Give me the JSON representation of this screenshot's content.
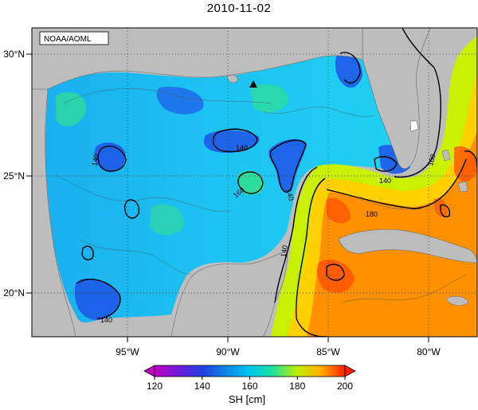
{
  "title": "2010-11-02",
  "credit": "NOAA/AOML",
  "colorbar_label": "SH [cm]",
  "map": {
    "lon_ticks": [
      "95°W",
      "90°W",
      "85°W",
      "80°W"
    ],
    "lat_ticks": [
      "30°N",
      "25°N",
      "20°N"
    ],
    "contour_labels": [
      "140",
      "140",
      "140",
      "160",
      "140",
      "180",
      "160",
      "140",
      "140"
    ]
  },
  "chart_data": {
    "type": "heatmap",
    "variable": "SH",
    "units": "cm",
    "date": "2010-11-02",
    "lon_range": [
      -98,
      -78
    ],
    "lat_range": [
      18,
      31
    ],
    "xticks": [
      -95,
      -90,
      -85,
      -80
    ],
    "yticks": [
      20,
      25,
      30
    ],
    "colorbar": {
      "min": 120,
      "max": 200,
      "ticks": [
        120,
        140,
        160,
        180,
        200
      ]
    },
    "contour_levels": [
      140,
      160,
      180
    ],
    "marker": {
      "symbol": "triangle",
      "lon": -88.4,
      "lat": 28.8
    },
    "colors": {
      "land": "#bdbdbd",
      "scale": [
        "#c000c0",
        "#2040e0",
        "#00c8f0",
        "#20e0a0",
        "#c0f000",
        "#ffb000",
        "#ff3000"
      ]
    }
  }
}
